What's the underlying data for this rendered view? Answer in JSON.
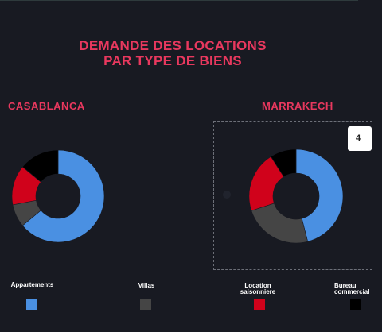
{
  "title_line1": "DEMANDE DES LOCATIONS",
  "title_line2": "PAR TYPE DE BIENS",
  "tooltip_text": "4",
  "colors": {
    "appartements": "#4a90e2",
    "villas": "#454545",
    "location_saisonniere": "#d0021b",
    "bureau": "#000000"
  },
  "legend": [
    {
      "label": "Appartements",
      "color": "#4a90e2"
    },
    {
      "label": "Villas",
      "color": "#454545"
    },
    {
      "label": "Location saisonniere",
      "color": "#d0021b"
    },
    {
      "label": "Bureau commercial",
      "color": "#000000"
    }
  ],
  "chart_data": [
    {
      "type": "pie",
      "title": "CASABLANCA",
      "categories": [
        "Appartements",
        "Villas",
        "Location saisonniere",
        "Bureau commercial"
      ],
      "values": [
        64,
        8,
        14,
        14
      ]
    },
    {
      "type": "pie",
      "title": "MARRAKECH",
      "categories": [
        "Appartements",
        "Villas",
        "Location saisonniere",
        "Bureau commercial"
      ],
      "values": [
        46,
        24,
        21,
        9
      ]
    }
  ]
}
